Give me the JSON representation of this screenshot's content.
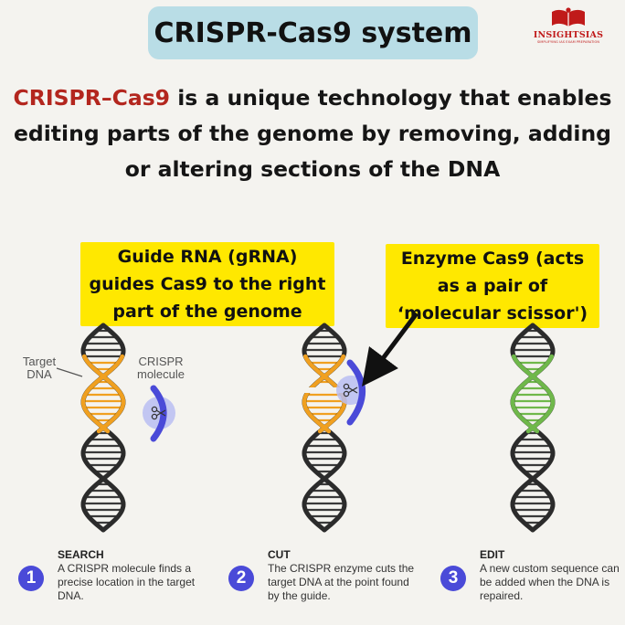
{
  "title": "CRISPR-Cas9 system",
  "logo": {
    "name": "INSIGHTSIAS",
    "tagline": "SIMPLIFYING IAS EXAM PREPARATION"
  },
  "intro": {
    "highlight": "CRISPR–Cas9",
    "rest": " is a unique technology that enables editing parts of the genome by removing, adding or altering sections of the DNA"
  },
  "notes": {
    "guide": "Guide RNA (gRNA) guides Cas9 to the right part of the genome",
    "cas9": "Enzyme Cas9 (acts as a pair of ‘molecular scissor')"
  },
  "labels": {
    "target_dna": "Target\nDNA",
    "crispr_molecule": "CRISPR\nmolecule"
  },
  "steps": [
    {
      "number": "1",
      "title": "SEARCH",
      "description": "A CRISPR molecule finds a precise location in the target DNA."
    },
    {
      "number": "2",
      "title": "CUT",
      "description": "The CRISPR enzyme cuts the target DNA at the point found by the guide."
    },
    {
      "number": "3",
      "title": "EDIT",
      "description": "A new custom sequence can be added when the DNA is repaired."
    }
  ],
  "colors": {
    "title_bg": "#b9dde6",
    "highlight": "#b3261e",
    "note_bg": "#ffe800",
    "dna_strand": "#2b2b2b",
    "dna_target": "#f0a020",
    "dna_edited": "#6fb84a",
    "crispr": "#4a4ad8",
    "crispr_glow": "#b8bdf2",
    "step_circle": "#4a4ad8"
  }
}
